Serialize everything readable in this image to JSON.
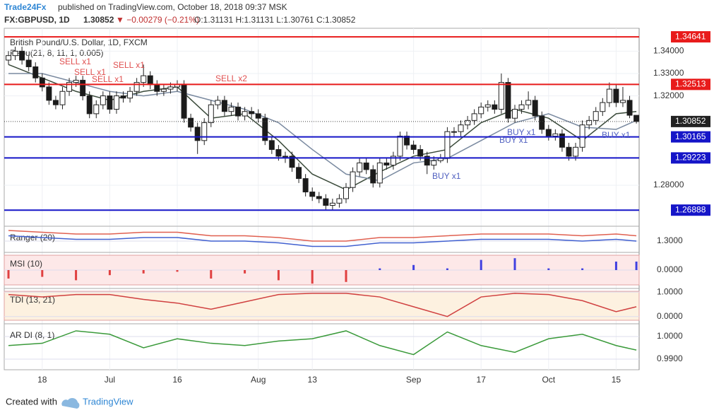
{
  "header": {
    "publisher": "Trade24Fx",
    "published": "published on TradingView.com, October 18, 2018 09:37 MSK",
    "symbol": "FX:GBPUSD, 1D",
    "price": "1.30852",
    "change": "▼ −0.00279 (−0.21%)",
    "ohlc": "O:1.31131 H:1.31131 L:1.30761 C:1.30852"
  },
  "chart_data": {
    "type": "candlestick",
    "title": "British Pound/U.S. Dollar, 1D, FXCM",
    "indicator": "Repu(21, 8, 11, 1, 0.005)",
    "up_color": "#ffffff",
    "down_color": "#1a1a1a",
    "ylim": [
      1.2642,
      1.3496
    ],
    "yticks": [
      {
        "value": 1.34,
        "label": "1.34000"
      },
      {
        "value": 1.33,
        "label": "1.33000"
      },
      {
        "value": 1.32,
        "label": "1.32000"
      },
      {
        "value": 1.28,
        "label": "1.28000"
      }
    ],
    "xticks": [
      {
        "value": 5,
        "label": "18"
      },
      {
        "value": 15,
        "label": "Jul"
      },
      {
        "value": 25,
        "label": "16"
      },
      {
        "value": 37,
        "label": "Aug"
      },
      {
        "value": 45,
        "label": "13"
      },
      {
        "value": 60,
        "label": "Sep"
      },
      {
        "value": 70,
        "label": "17"
      },
      {
        "value": 80,
        "label": "Oct"
      },
      {
        "value": 90,
        "label": "15"
      }
    ],
    "levels": [
      {
        "value": 1.34641,
        "label": "1.34641",
        "color": "#e81b1b"
      },
      {
        "value": 1.32513,
        "label": "1.32513",
        "color": "#e81b1b"
      },
      {
        "value": 1.30165,
        "label": "1.30165",
        "color": "#1515c8"
      },
      {
        "value": 1.29223,
        "label": "1.29223",
        "color": "#1515c8"
      },
      {
        "value": 1.26888,
        "label": "1.26888",
        "color": "#1515c8"
      }
    ],
    "last": {
      "value": 1.30852,
      "label": "1.30852"
    },
    "ohlc": [
      [
        1.336,
        1.34,
        1.334,
        1.338
      ],
      [
        1.338,
        1.342,
        1.336,
        1.34
      ],
      [
        1.34,
        1.342,
        1.334,
        1.336
      ],
      [
        1.336,
        1.338,
        1.331,
        1.333
      ],
      [
        1.333,
        1.335,
        1.326,
        1.328
      ],
      [
        1.328,
        1.33,
        1.322,
        1.324
      ],
      [
        1.324,
        1.326,
        1.316,
        1.318
      ],
      [
        1.318,
        1.32,
        1.314,
        1.316
      ],
      [
        1.316,
        1.324,
        1.314,
        1.322
      ],
      [
        1.322,
        1.328,
        1.32,
        1.326
      ],
      [
        1.326,
        1.329,
        1.324,
        1.327
      ],
      [
        1.327,
        1.329,
        1.318,
        1.32
      ],
      [
        1.32,
        1.322,
        1.31,
        1.312
      ],
      [
        1.312,
        1.318,
        1.31,
        1.316
      ],
      [
        1.316,
        1.322,
        1.314,
        1.32
      ],
      [
        1.32,
        1.322,
        1.312,
        1.314
      ],
      [
        1.314,
        1.322,
        1.312,
        1.32
      ],
      [
        1.32,
        1.322,
        1.317,
        1.319
      ],
      [
        1.319,
        1.324,
        1.317,
        1.322
      ],
      [
        1.322,
        1.328,
        1.32,
        1.326
      ],
      [
        1.326,
        1.334,
        1.324,
        1.329
      ],
      [
        1.329,
        1.331,
        1.323,
        1.325
      ],
      [
        1.325,
        1.327,
        1.32,
        1.322
      ],
      [
        1.322,
        1.325,
        1.32,
        1.323
      ],
      [
        1.323,
        1.326,
        1.321,
        1.324
      ],
      [
        1.324,
        1.327,
        1.322,
        1.325
      ],
      [
        1.325,
        1.327,
        1.308,
        1.31
      ],
      [
        1.31,
        1.312,
        1.304,
        1.306
      ],
      [
        1.306,
        1.308,
        1.294,
        1.3
      ],
      [
        1.3,
        1.31,
        1.298,
        1.308
      ],
      [
        1.308,
        1.318,
        1.306,
        1.316
      ],
      [
        1.316,
        1.32,
        1.314,
        1.318
      ],
      [
        1.318,
        1.32,
        1.311,
        1.313
      ],
      [
        1.313,
        1.317,
        1.311,
        1.315
      ],
      [
        1.315,
        1.317,
        1.309,
        1.311
      ],
      [
        1.311,
        1.315,
        1.309,
        1.313
      ],
      [
        1.313,
        1.315,
        1.31,
        1.312
      ],
      [
        1.312,
        1.314,
        1.308,
        1.31
      ],
      [
        1.31,
        1.312,
        1.298,
        1.3
      ],
      [
        1.3,
        1.302,
        1.294,
        1.296
      ],
      [
        1.296,
        1.298,
        1.291,
        1.293
      ],
      [
        1.293,
        1.295,
        1.29,
        1.293
      ],
      [
        1.293,
        1.295,
        1.286,
        1.288
      ],
      [
        1.288,
        1.29,
        1.281,
        1.283
      ],
      [
        1.283,
        1.285,
        1.275,
        1.277
      ],
      [
        1.277,
        1.279,
        1.273,
        1.275
      ],
      [
        1.275,
        1.277,
        1.272,
        1.274
      ],
      [
        1.274,
        1.276,
        1.269,
        1.271
      ],
      [
        1.271,
        1.274,
        1.269,
        1.272
      ],
      [
        1.272,
        1.276,
        1.27,
        1.274
      ],
      [
        1.274,
        1.281,
        1.272,
        1.279
      ],
      [
        1.279,
        1.288,
        1.277,
        1.286
      ],
      [
        1.286,
        1.292,
        1.284,
        1.29
      ],
      [
        1.29,
        1.292,
        1.285,
        1.287
      ],
      [
        1.287,
        1.289,
        1.279,
        1.281
      ],
      [
        1.281,
        1.292,
        1.279,
        1.29
      ],
      [
        1.29,
        1.292,
        1.287,
        1.289
      ],
      [
        1.289,
        1.295,
        1.287,
        1.293
      ],
      [
        1.293,
        1.304,
        1.291,
        1.302
      ],
      [
        1.302,
        1.304,
        1.296,
        1.298
      ],
      [
        1.298,
        1.3,
        1.294,
        1.296
      ],
      [
        1.296,
        1.298,
        1.291,
        1.293
      ],
      [
        1.293,
        1.295,
        1.285,
        1.289
      ],
      [
        1.289,
        1.293,
        1.287,
        1.291
      ],
      [
        1.291,
        1.294,
        1.29,
        1.292
      ],
      [
        1.292,
        1.306,
        1.29,
        1.304
      ],
      [
        1.304,
        1.306,
        1.302,
        1.304
      ],
      [
        1.304,
        1.309,
        1.302,
        1.307
      ],
      [
        1.307,
        1.311,
        1.305,
        1.309
      ],
      [
        1.309,
        1.314,
        1.307,
        1.312
      ],
      [
        1.312,
        1.317,
        1.31,
        1.315
      ],
      [
        1.315,
        1.318,
        1.313,
        1.316
      ],
      [
        1.316,
        1.318,
        1.312,
        1.314
      ],
      [
        1.314,
        1.33,
        1.312,
        1.326
      ],
      [
        1.326,
        1.328,
        1.308,
        1.31
      ],
      [
        1.31,
        1.316,
        1.308,
        1.314
      ],
      [
        1.314,
        1.318,
        1.312,
        1.316
      ],
      [
        1.316,
        1.322,
        1.314,
        1.318
      ],
      [
        1.318,
        1.32,
        1.309,
        1.311
      ],
      [
        1.311,
        1.313,
        1.303,
        1.305
      ],
      [
        1.305,
        1.307,
        1.3,
        1.302
      ],
      [
        1.302,
        1.305,
        1.3,
        1.303
      ],
      [
        1.303,
        1.305,
        1.295,
        1.297
      ],
      [
        1.297,
        1.299,
        1.291,
        1.293
      ],
      [
        1.293,
        1.299,
        1.291,
        1.297
      ],
      [
        1.297,
        1.309,
        1.295,
        1.307
      ],
      [
        1.307,
        1.311,
        1.305,
        1.309
      ],
      [
        1.309,
        1.315,
        1.307,
        1.313
      ],
      [
        1.313,
        1.319,
        1.311,
        1.317
      ],
      [
        1.317,
        1.326,
        1.315,
        1.323
      ],
      [
        1.323,
        1.325,
        1.315,
        1.317
      ],
      [
        1.317,
        1.324,
        1.315,
        1.318
      ],
      [
        1.318,
        1.32,
        1.31,
        1.31131
      ],
      [
        1.31131,
        1.31131,
        1.30761,
        1.30852
      ]
    ],
    "bands": {
      "x": [
        0,
        5,
        10,
        15,
        20,
        25,
        30,
        35,
        40,
        45,
        50,
        55,
        60,
        65,
        70,
        75,
        80,
        85,
        90,
        93
      ],
      "series": [
        {
          "color": "#3a4a3a",
          "values": [
            1.334,
            1.328,
            1.322,
            1.318,
            1.322,
            1.324,
            1.31,
            1.312,
            1.3,
            1.285,
            1.278,
            1.286,
            1.293,
            1.296,
            1.308,
            1.314,
            1.31,
            1.3,
            1.312,
            1.313
          ]
        },
        {
          "color": "#7a8aa0",
          "values": [
            1.33,
            1.33,
            1.326,
            1.322,
            1.32,
            1.322,
            1.318,
            1.314,
            1.308,
            1.296,
            1.285,
            1.282,
            1.29,
            1.292,
            1.3,
            1.308,
            1.312,
            1.306,
            1.305,
            1.309
          ]
        }
      ]
    },
    "annotations": [
      {
        "text": "SELL x1",
        "color": "#e05050"
      },
      {
        "text": "SELL x1",
        "color": "#e05050"
      },
      {
        "text": "SELL x1",
        "color": "#e05050"
      },
      {
        "text": "SELL x1",
        "color": "#e05050"
      },
      {
        "text": "SELL x2",
        "color": "#e05050"
      },
      {
        "text": "BUY x1",
        "color": "#5060c0"
      },
      {
        "text": "BUY x1",
        "color": "#5060c0"
      },
      {
        "text": "BUY x1",
        "color": "#5060c0"
      },
      {
        "text": "BUY x1",
        "color": "#5060c0"
      }
    ]
  },
  "panels": [
    {
      "type": "line",
      "label": "Ranger (20)",
      "ylim": [
        1.294,
        1.308
      ],
      "yticks": [
        {
          "value": 1.3,
          "label": "1.3000"
        }
      ],
      "x": [
        0,
        5,
        10,
        15,
        20,
        25,
        30,
        35,
        40,
        45,
        50,
        55,
        60,
        65,
        70,
        75,
        80,
        85,
        90,
        93
      ],
      "series": [
        {
          "color": "#e06050",
          "values": [
            1.306,
            1.305,
            1.304,
            1.304,
            1.305,
            1.305,
            1.303,
            1.303,
            1.302,
            1.3,
            1.3,
            1.302,
            1.302,
            1.303,
            1.304,
            1.304,
            1.304,
            1.303,
            1.304,
            1.303
          ]
        },
        {
          "color": "#4060d0",
          "values": [
            1.303,
            1.302,
            1.301,
            1.301,
            1.302,
            1.302,
            1.3,
            1.3,
            1.299,
            1.297,
            1.297,
            1.299,
            1.299,
            1.3,
            1.301,
            1.301,
            1.301,
            1.3,
            1.301,
            1.3
          ]
        }
      ]
    },
    {
      "type": "bar",
      "label": "MSI (10)",
      "ylim": [
        -1,
        1
      ],
      "yticks": [
        {
          "value": 0,
          "label": "0.0000"
        }
      ],
      "x": [
        0,
        5,
        10,
        15,
        20,
        25,
        30,
        35,
        40,
        45,
        50,
        55,
        60,
        65,
        70,
        75,
        80,
        85,
        90,
        93
      ],
      "series": [
        {
          "color": "#4040e0",
          "negative_color": "#e04040",
          "values": [
            -0.5,
            -0.4,
            -0.6,
            -0.3,
            -0.2,
            -0.1,
            -0.5,
            -0.2,
            -0.6,
            -0.8,
            -0.7,
            0.1,
            0.3,
            0.1,
            0.6,
            0.7,
            0.1,
            0.1,
            0.5,
            0.5
          ]
        }
      ]
    },
    {
      "type": "line",
      "label": "TDI (13, 21)",
      "ylim": [
        -0.24,
        1.12
      ],
      "yticks": [
        {
          "value": 1,
          "label": "1.0000"
        },
        {
          "value": 0,
          "label": "0.0000"
        }
      ],
      "x": [
        0,
        5,
        10,
        15,
        20,
        25,
        30,
        35,
        40,
        45,
        50,
        55,
        60,
        65,
        70,
        75,
        80,
        85,
        90,
        93
      ],
      "series": [
        {
          "color": "#d04040",
          "values": [
            0.9,
            0.8,
            0.9,
            0.9,
            0.7,
            0.55,
            0.3,
            0.6,
            0.9,
            0.95,
            0.95,
            0.8,
            0.4,
            0.0,
            0.8,
            0.95,
            0.9,
            0.65,
            0.2,
            0.4
          ]
        }
      ]
    },
    {
      "type": "line",
      "label": "AR DI (8, 1)",
      "ylim": [
        0.9853,
        1.0053
      ],
      "yticks": [
        {
          "value": 1,
          "label": "1.0000"
        },
        {
          "value": 0.99,
          "label": "0.9900"
        }
      ],
      "x": [
        0,
        5,
        10,
        15,
        20,
        25,
        30,
        35,
        40,
        45,
        50,
        55,
        60,
        65,
        70,
        75,
        80,
        85,
        90,
        93
      ],
      "series": [
        {
          "color": "#3a9a3a",
          "values": [
            0.996,
            0.997,
            1.0025,
            1.001,
            0.995,
            0.999,
            0.997,
            0.996,
            0.998,
            0.999,
            1.0025,
            0.996,
            0.992,
            1.002,
            0.996,
            0.993,
            0.999,
            1.001,
            0.996,
            0.994
          ]
        }
      ]
    }
  ],
  "footer": {
    "created": "Created with",
    "brand": "TradingView"
  }
}
